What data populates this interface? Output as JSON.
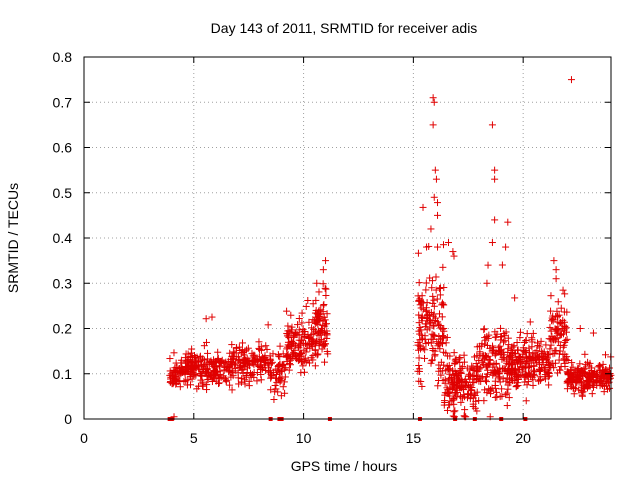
{
  "chart_data": {
    "type": "scatter",
    "title": "Day 143 of 2011, SRMTID for receiver adis",
    "xlabel": "GPS time / hours",
    "ylabel": "SRMTID / TECUs",
    "xlim": [
      0,
      24
    ],
    "ylim": [
      0,
      0.8
    ],
    "xticks": [
      0,
      5,
      10,
      15,
      20
    ],
    "yticks": [
      0,
      0.1,
      0.2,
      0.3,
      0.4,
      0.5,
      0.6,
      0.7,
      0.8
    ],
    "xtick_labels": [
      "0",
      "5",
      "10",
      "15",
      "20"
    ],
    "ytick_labels": [
      "0",
      "0.1",
      "0.2",
      "0.3",
      "0.4",
      "0.5",
      "0.6",
      "0.7",
      "0.8"
    ],
    "grid": true,
    "marker": "+",
    "color": "#e00000",
    "clusters": [
      {
        "x_range": [
          3.9,
          4.6
        ],
        "y_center": 0.1,
        "y_spread": 0.03,
        "count": 60
      },
      {
        "x_range": [
          4.6,
          6.5
        ],
        "y_center": 0.11,
        "y_spread": 0.035,
        "count": 180
      },
      {
        "x_range": [
          6.5,
          8.5
        ],
        "y_center": 0.12,
        "y_spread": 0.04,
        "count": 160
      },
      {
        "x_range": [
          8.5,
          9.2
        ],
        "y_center": 0.1,
        "y_spread": 0.05,
        "count": 50
      },
      {
        "x_range": [
          9.2,
          10.4
        ],
        "y_center": 0.16,
        "y_spread": 0.05,
        "count": 120
      },
      {
        "x_range": [
          10.4,
          11.1
        ],
        "y_center": 0.2,
        "y_spread": 0.07,
        "count": 90
      },
      {
        "x_range": [
          15.2,
          16.4
        ],
        "y_center": 0.2,
        "y_spread": 0.12,
        "count": 150
      },
      {
        "x_range": [
          16.4,
          18.0
        ],
        "y_center": 0.08,
        "y_spread": 0.06,
        "count": 180
      },
      {
        "x_range": [
          18.0,
          19.4
        ],
        "y_center": 0.12,
        "y_spread": 0.08,
        "count": 160
      },
      {
        "x_range": [
          19.4,
          21.2
        ],
        "y_center": 0.12,
        "y_spread": 0.05,
        "count": 200
      },
      {
        "x_range": [
          21.2,
          22.0
        ],
        "y_center": 0.18,
        "y_spread": 0.07,
        "count": 90
      },
      {
        "x_range": [
          22.0,
          24.0
        ],
        "y_center": 0.09,
        "y_spread": 0.03,
        "count": 220
      }
    ],
    "points": [
      [
        4.1,
        0.005
      ],
      [
        11.0,
        0.35
      ],
      [
        10.9,
        0.33
      ],
      [
        10.6,
        0.3
      ],
      [
        15.9,
        0.71
      ],
      [
        15.95,
        0.7
      ],
      [
        15.9,
        0.65
      ],
      [
        16.0,
        0.55
      ],
      [
        16.05,
        0.53
      ],
      [
        15.95,
        0.49
      ],
      [
        16.1,
        0.45
      ],
      [
        15.8,
        0.42
      ],
      [
        16.1,
        0.38
      ],
      [
        15.6,
        0.38
      ],
      [
        16.8,
        0.37
      ],
      [
        16.85,
        0.36
      ],
      [
        16.6,
        0.39
      ],
      [
        18.6,
        0.65
      ],
      [
        18.7,
        0.55
      ],
      [
        18.7,
        0.53
      ],
      [
        18.7,
        0.44
      ],
      [
        19.3,
        0.435
      ],
      [
        18.6,
        0.39
      ],
      [
        18.4,
        0.34
      ],
      [
        18.35,
        0.3
      ],
      [
        19.2,
        0.38
      ],
      [
        21.4,
        0.35
      ],
      [
        21.5,
        0.33
      ],
      [
        21.5,
        0.31
      ],
      [
        22.2,
        0.75
      ],
      [
        22.6,
        0.2
      ],
      [
        23.2,
        0.19
      ]
    ],
    "zero_markers": [
      3.9,
      4.0,
      8.5,
      8.9,
      9.0,
      11.2,
      15.3,
      16.9,
      17.8,
      19.0,
      20.1
    ]
  }
}
